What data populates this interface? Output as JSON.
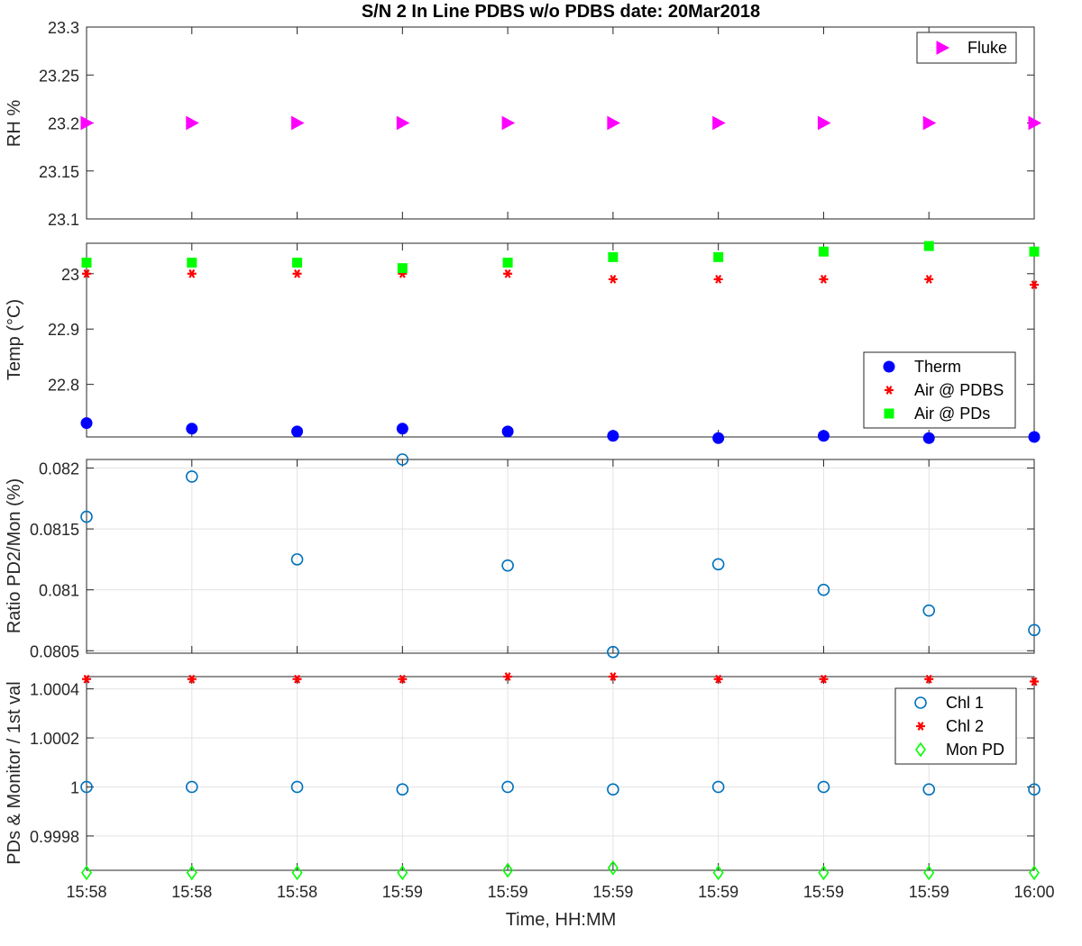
{
  "chart_data": {
    "title": "S/N 2 In Line PDBS w/o PDBS date: 20Mar2018",
    "xlabel": "Time, HH:MM",
    "x_tick_labels": [
      "15:58",
      "15:58",
      "15:58",
      "15:59",
      "15:59",
      "15:59",
      "15:59",
      "15:59",
      "15:59",
      "16:00"
    ],
    "x": [
      0,
      1,
      2,
      3,
      4,
      5,
      6,
      7,
      8,
      9
    ],
    "panels": [
      {
        "type": "scatter",
        "ylabel": "RH %",
        "ylim": [
          23.1,
          23.3
        ],
        "yticks": [
          23.1,
          23.15,
          23.2,
          23.25,
          23.3
        ],
        "ytick_labels": [
          "23.1",
          "23.15",
          "23.2",
          "23.25",
          "23.3"
        ],
        "grid": false,
        "legend_position": "top-right",
        "series": [
          {
            "name": "Fluke",
            "marker": "triangle-right",
            "color": "#ff00ff",
            "values": [
              23.2,
              23.2,
              23.2,
              23.2,
              23.2,
              23.2,
              23.2,
              23.2,
              23.2,
              23.2
            ]
          }
        ]
      },
      {
        "type": "scatter",
        "ylabel": "Temp (°C)",
        "ylim": [
          22.705,
          23.055
        ],
        "yticks": [
          22.8,
          22.9,
          23.0
        ],
        "ytick_labels": [
          "22.8",
          "22.9",
          "23"
        ],
        "grid": false,
        "legend_position": "bottom-right",
        "series": [
          {
            "name": "Therm",
            "marker": "filled-circle",
            "color": "#0000ff",
            "values": [
              22.73,
              22.72,
              22.715,
              22.72,
              22.715,
              22.707,
              22.703,
              22.707,
              22.703,
              22.705
            ]
          },
          {
            "name": "Air @ PDBS",
            "marker": "asterisk",
            "color": "#ff0000",
            "values": [
              23.0,
              23.0,
              23.0,
              23.0,
              23.0,
              22.99,
              22.99,
              22.99,
              22.99,
              22.98
            ]
          },
          {
            "name": "Air @ PDs",
            "marker": "filled-square",
            "color": "#00ff00",
            "values": [
              23.02,
              23.02,
              23.02,
              23.01,
              23.02,
              23.03,
              23.03,
              23.04,
              23.05,
              23.04
            ]
          }
        ]
      },
      {
        "type": "scatter",
        "ylabel": "Ratio PD2/Mon (%)",
        "ylim": [
          0.08048,
          0.08207
        ],
        "yticks": [
          0.0805,
          0.081,
          0.0815,
          0.082
        ],
        "ytick_labels": [
          "0.0805",
          "0.081",
          "0.0815",
          "0.082"
        ],
        "grid": true,
        "series": [
          {
            "name": "",
            "marker": "open-circle",
            "color": "#0072bd",
            "values": [
              0.0816,
              0.08193,
              0.08125,
              0.08207,
              0.0812,
              0.08049,
              0.08121,
              0.081,
              0.08083,
              0.08067
            ]
          }
        ]
      },
      {
        "type": "scatter",
        "ylabel": "PDs & Monitor / 1st val",
        "ylim": [
          0.99966,
          1.00045
        ],
        "yticks": [
          0.9998,
          1.0,
          1.0002,
          1.0004
        ],
        "ytick_labels": [
          "0.9998",
          "1",
          "1.0002",
          "1.0004"
        ],
        "grid": true,
        "legend_position": "top-right",
        "series": [
          {
            "name": "Chl 1",
            "marker": "open-circle",
            "color": "#0072bd",
            "values": [
              1.0,
              1.0,
              1.0,
              0.99999,
              1.0,
              0.99999,
              1.0,
              1.0,
              0.99999,
              0.99999
            ]
          },
          {
            "name": "Chl 2",
            "marker": "asterisk",
            "color": "#ff0000",
            "values": [
              1.00044,
              1.00044,
              1.00044,
              1.00044,
              1.00045,
              1.00045,
              1.00044,
              1.00044,
              1.00044,
              1.00043
            ]
          },
          {
            "name": "Mon PD",
            "marker": "open-diamond",
            "color": "#00ff00",
            "values": [
              0.99965,
              0.99965,
              0.99965,
              0.99965,
              0.99966,
              0.99967,
              0.99965,
              0.99965,
              0.99965,
              0.99965
            ]
          }
        ]
      }
    ]
  }
}
